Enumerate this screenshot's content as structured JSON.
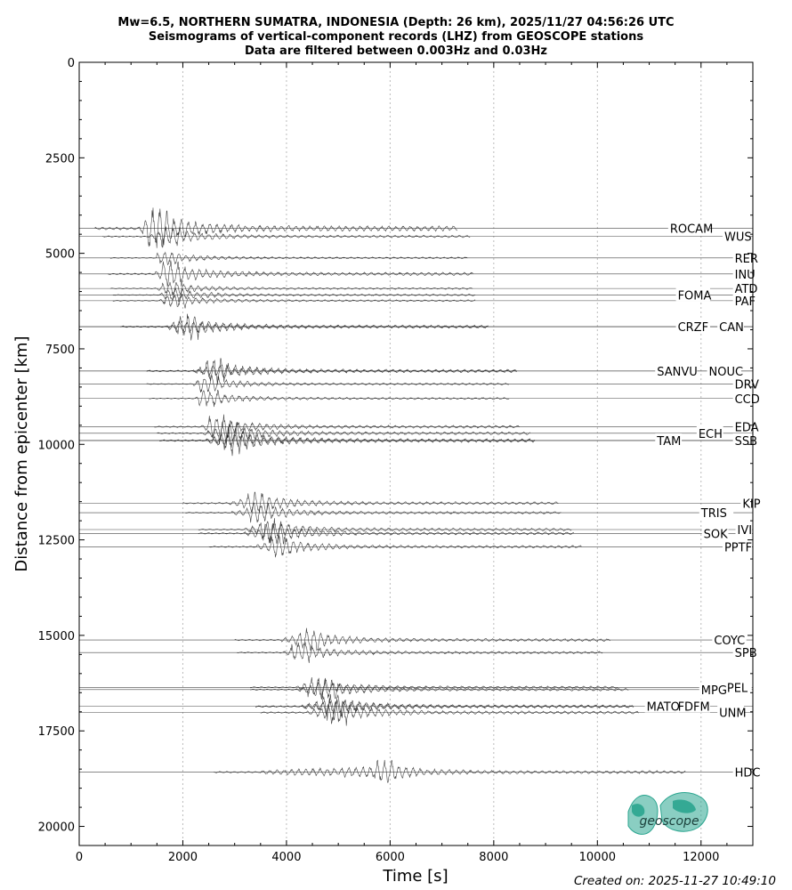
{
  "chart_data": {
    "type": "line",
    "title": [
      "Mw=6.5, NORTHERN SUMATRA, INDONESIA (Depth: 26 km), 2025/11/27 04:56:26 UTC",
      "Seismograms of vertical-component records (LHZ) from GEOSCOPE stations",
      "Data are filtered between 0.003Hz and 0.03Hz"
    ],
    "xlabel": "Time [s]",
    "ylabel": "Distance from epicenter [km]",
    "xlim": [
      0,
      13000
    ],
    "ylim": [
      20500,
      0
    ],
    "xticks": [
      0,
      2000,
      4000,
      6000,
      8000,
      10000,
      12000
    ],
    "yticks": [
      0,
      2500,
      5000,
      7500,
      10000,
      12500,
      15000,
      17500,
      20000
    ],
    "grid": "vertical dotted",
    "stations": [
      {
        "name": "ROCAM",
        "distance": 4350,
        "arrival": 1150,
        "peak": 1300,
        "amp": 26,
        "label_x": 11400
      },
      {
        "name": "WUS",
        "distance": 4560,
        "arrival": 1350,
        "peak": 1550,
        "amp": 12,
        "label_x": 12450
      },
      {
        "name": "RER",
        "distance": 5120,
        "arrival": 1500,
        "peak": 1500,
        "amp": 9,
        "label_x": 12650
      },
      {
        "name": "INU",
        "distance": 5540,
        "arrival": 1450,
        "peak": 1600,
        "amp": 16,
        "label_x": 12650
      },
      {
        "name": "ATD",
        "distance": 5920,
        "arrival": 1500,
        "peak": 1600,
        "amp": 9,
        "label_x": 12650
      },
      {
        "name": "FOMA",
        "distance": 6090,
        "arrival": 1550,
        "peak": 1650,
        "amp": 9,
        "label_x": 11550
      },
      {
        "name": "PAF",
        "distance": 6240,
        "arrival": 1550,
        "peak": 1650,
        "amp": 9,
        "label_x": 12650
      },
      {
        "name": "CRZF",
        "distance": 6920,
        "arrival": 1700,
        "peak": 1900,
        "amp": 16,
        "label_x": 11550
      },
      {
        "name": "CAN",
        "distance": 6920,
        "arrival": 1700,
        "peak": 1900,
        "amp": 8,
        "label_x": 12350
      },
      {
        "name": "SANVU",
        "distance": 8080,
        "arrival": 2200,
        "peak": 2450,
        "amp": 16,
        "label_x": 11150
      },
      {
        "name": "NOUC",
        "distance": 8080,
        "arrival": 2200,
        "peak": 2450,
        "amp": 8,
        "label_x": 12150
      },
      {
        "name": "DRV",
        "distance": 8420,
        "arrival": 2200,
        "peak": 2300,
        "amp": 10,
        "label_x": 12650
      },
      {
        "name": "CCD",
        "distance": 8800,
        "arrival": 2250,
        "peak": 2300,
        "amp": 10,
        "label_x": 12650
      },
      {
        "name": "EDA",
        "distance": 9540,
        "arrival": 2350,
        "peak": 2500,
        "amp": 14,
        "label_x": 12650
      },
      {
        "name": "ECH",
        "distance": 9710,
        "arrival": 2400,
        "peak": 2700,
        "amp": 14,
        "label_x": 11950
      },
      {
        "name": "TAM",
        "distance": 9900,
        "arrival": 2450,
        "peak": 2800,
        "amp": 18,
        "label_x": 11150
      },
      {
        "name": "SSB",
        "distance": 9900,
        "arrival": 2450,
        "peak": 2800,
        "amp": 9,
        "label_x": 12650
      },
      {
        "name": "KIP",
        "distance": 11540,
        "arrival": 2900,
        "peak": 3250,
        "amp": 14,
        "label_x": 12800
      },
      {
        "name": "TRIS",
        "distance": 11790,
        "arrival": 2950,
        "peak": 3300,
        "amp": 12,
        "label_x": 12000
      },
      {
        "name": "IVI",
        "distance": 12230,
        "arrival": 3200,
        "peak": 3500,
        "amp": 14,
        "label_x": 12700
      },
      {
        "name": "SOK",
        "distance": 12330,
        "arrival": 3200,
        "peak": 3550,
        "amp": 14,
        "label_x": 12050
      },
      {
        "name": "PPTF",
        "distance": 12680,
        "arrival": 3400,
        "peak": 3700,
        "amp": 13,
        "label_x": 12450
      },
      {
        "name": "COYC",
        "distance": 15120,
        "arrival": 3900,
        "peak": 4250,
        "amp": 14,
        "label_x": 12250
      },
      {
        "name": "SPB",
        "distance": 15450,
        "arrival": 3950,
        "peak": 4100,
        "amp": 12,
        "label_x": 12650
      },
      {
        "name": "PEL",
        "distance": 16360,
        "arrival": 4200,
        "peak": 4400,
        "amp": 12,
        "label_x": 12500
      },
      {
        "name": "MPG",
        "distance": 16420,
        "arrival": 4200,
        "peak": 4600,
        "amp": 12,
        "label_x": 12000
      },
      {
        "name": "FDFM",
        "distance": 16860,
        "arrival": 4300,
        "peak": 4700,
        "amp": 16,
        "label_x": 11550
      },
      {
        "name": "MATO",
        "distance": 16860,
        "arrival": 4300,
        "peak": 4700,
        "amp": 10,
        "label_x": 10950
      },
      {
        "name": "UNM",
        "distance": 17020,
        "arrival": 4400,
        "peak": 4800,
        "amp": 15,
        "label_x": 12350
      },
      {
        "name": "HDC",
        "distance": 18580,
        "arrival": 3500,
        "peak": 5700,
        "amp": 15,
        "label_x": 12650
      }
    ]
  },
  "logo": {
    "text": "geoscope",
    "color": "#2aa58f"
  },
  "footer": {
    "created": "Created on: 2025-11-27 10:49:10"
  }
}
